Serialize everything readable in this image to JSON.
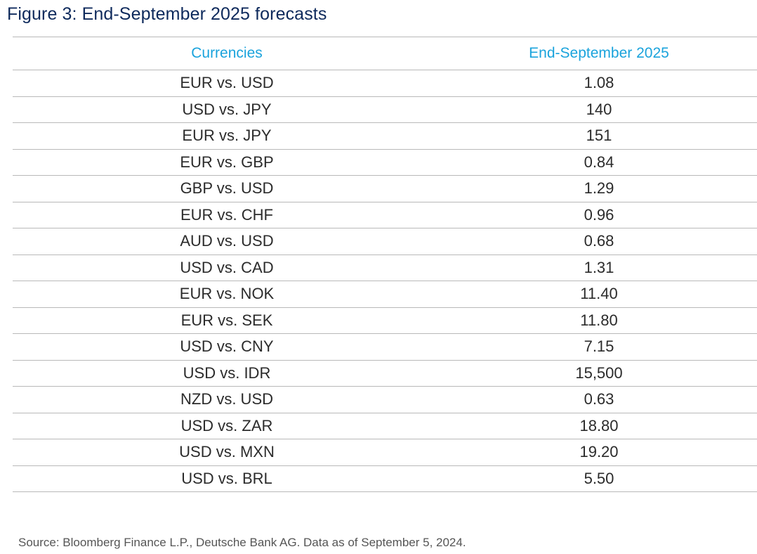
{
  "title": "Figure 3: End-September 2025 forecasts",
  "table": {
    "headers": {
      "currencies": "Currencies",
      "value": "End-September 2025"
    },
    "rows": [
      {
        "pair": "EUR vs. USD",
        "value": "1.08"
      },
      {
        "pair": "USD vs. JPY",
        "value": "140"
      },
      {
        "pair": "EUR vs. JPY",
        "value": "151"
      },
      {
        "pair": "EUR vs. GBP",
        "value": "0.84"
      },
      {
        "pair": "GBP vs. USD",
        "value": "1.29"
      },
      {
        "pair": "EUR vs. CHF",
        "value": "0.96"
      },
      {
        "pair": "AUD vs. USD",
        "value": "0.68"
      },
      {
        "pair": "USD vs. CAD",
        "value": "1.31"
      },
      {
        "pair": "EUR vs. NOK",
        "value": "11.40"
      },
      {
        "pair": "EUR vs. SEK",
        "value": "11.80"
      },
      {
        "pair": "USD vs. CNY",
        "value": "7.15"
      },
      {
        "pair": "USD vs. IDR",
        "value": "15,500"
      },
      {
        "pair": "NZD vs. USD",
        "value": "0.63"
      },
      {
        "pair": "USD vs. ZAR",
        "value": "18.80"
      },
      {
        "pair": "USD vs. MXN",
        "value": "19.20"
      },
      {
        "pair": "USD vs. BRL",
        "value": "5.50"
      }
    ]
  },
  "source": "Source: Bloomberg Finance L.P., Deutsche Bank AG. Data as of September 5, 2024.",
  "colors": {
    "title": "#0e2a5c",
    "header": "#1aa3dc",
    "rule": "#b9b9b9"
  }
}
